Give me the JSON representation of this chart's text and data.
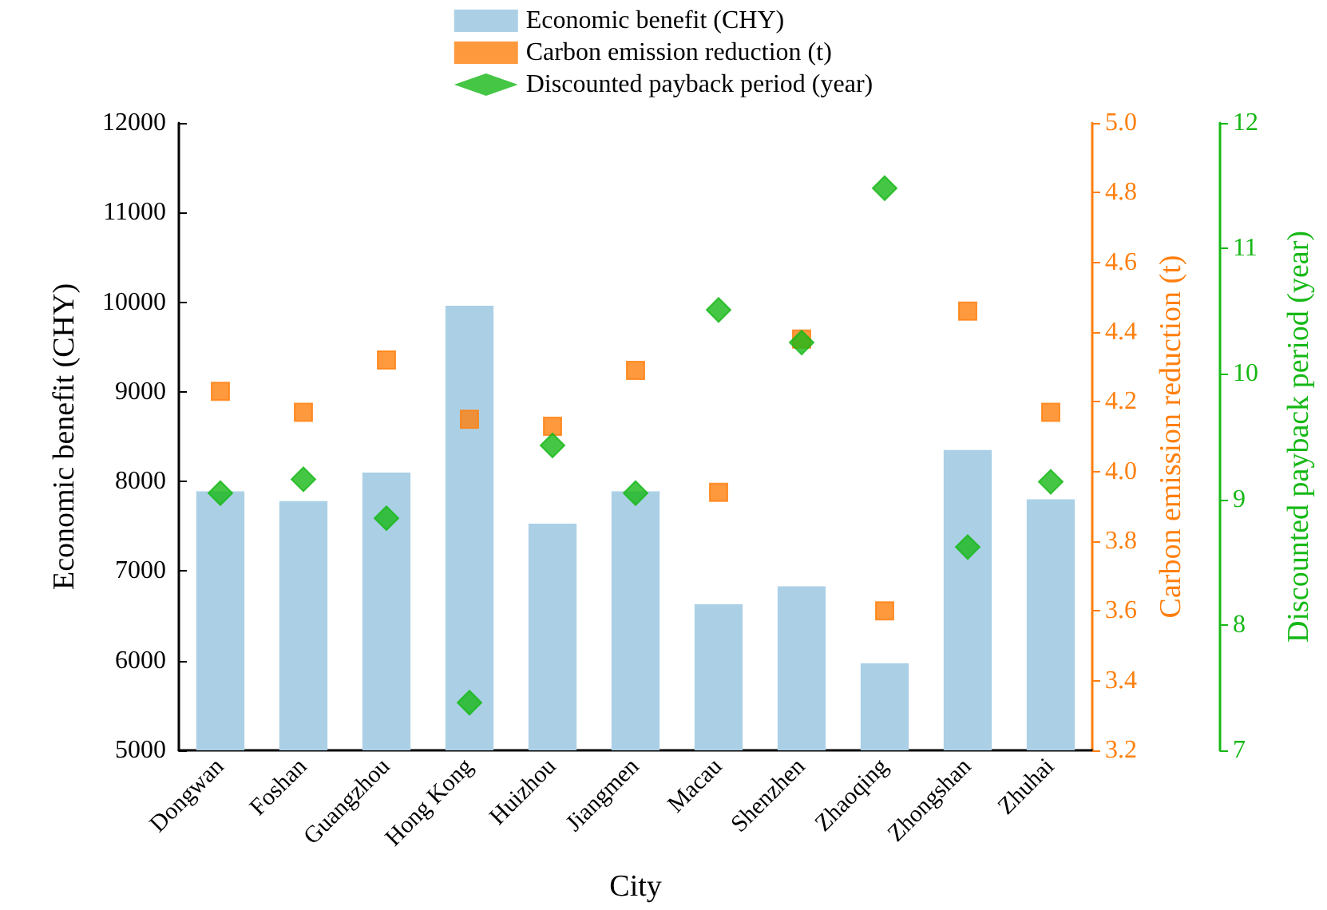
{
  "chart_data": {
    "type": "bar",
    "xlabel": "City",
    "ylabel": "Economic benefit (CHY)",
    "y2label": "Carbon emission reduction (t)",
    "y3label": "Discounted payback period (year)",
    "categories": [
      "Dongwan",
      "Foshan",
      "Guangzhou",
      "Hong Kong",
      "Huizhou",
      "Jiangmen",
      "Macau",
      "Shenzhen",
      "Zhaoqing",
      "Zhongshan",
      "Zhuhai"
    ],
    "series": [
      {
        "name": "Economic benefit (CHY)",
        "color": "#abd0e6",
        "values": [
          7890,
          7780,
          8100,
          9960,
          7530,
          7890,
          6630,
          6830,
          5970,
          8350,
          7800
        ]
      },
      {
        "name": "Carbon emission reduction (t)",
        "type": "scatter",
        "marker": "square",
        "axis": "y2",
        "color": "#ff7f0e",
        "values": [
          4.23,
          4.17,
          4.32,
          4.15,
          4.13,
          4.29,
          3.94,
          4.38,
          3.6,
          4.46,
          4.17
        ]
      },
      {
        "name": "Discounted payback period (year)",
        "type": "scatter",
        "marker": "diamond",
        "axis": "y3",
        "color": "#16b816",
        "values": [
          9.05,
          9.16,
          8.85,
          7.38,
          9.43,
          9.05,
          10.51,
          10.25,
          11.48,
          8.62,
          9.14
        ]
      }
    ],
    "ylim": [
      5000,
      12000
    ],
    "yticks": [
      5000,
      6000,
      7000,
      8000,
      9000,
      10000,
      11000,
      12000
    ],
    "y2lim": [
      3.2,
      5.0
    ],
    "y2ticks": [
      3.2,
      3.4,
      3.6,
      3.8,
      {
        "value": 4.0,
        "label": "4.0"
      },
      4.2,
      4.4,
      4.6,
      4.8,
      {
        "value": 5.0,
        "label": "5.0"
      }
    ],
    "y3lim": [
      7,
      12
    ],
    "y3ticks": [
      7,
      8,
      9,
      10,
      11,
      12
    ],
    "grid": false,
    "legend": "top"
  }
}
